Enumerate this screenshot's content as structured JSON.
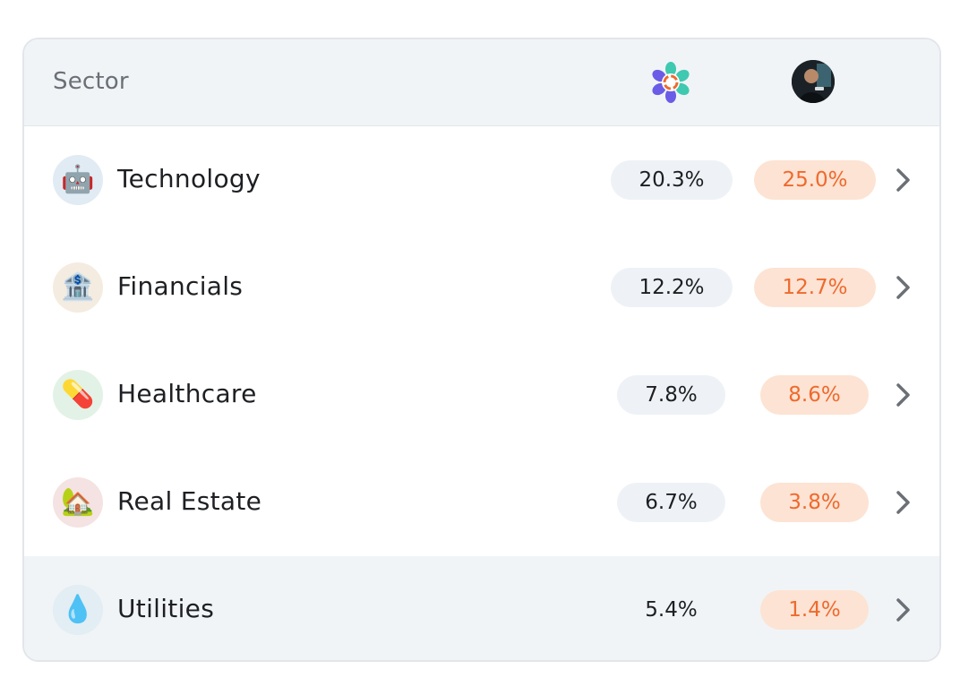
{
  "header": {
    "sector_label": "Sector",
    "column_a_icon": "flower-logo-icon",
    "column_b_icon": "person-avatar-icon"
  },
  "colors": {
    "pill_a_bg": "#eef2f6",
    "pill_b_bg": "#fde3d3",
    "pill_b_text": "#ee6a2e",
    "header_bg": "#f0f4f7"
  },
  "rows": [
    {
      "name": "Technology",
      "emoji": "🤖",
      "icon_name": "robot-icon",
      "value_a": "20.3%",
      "value_b": "25.0%"
    },
    {
      "name": "Financials",
      "emoji": "🏦",
      "icon_name": "bank-icon",
      "value_a": "12.2%",
      "value_b": "12.7%"
    },
    {
      "name": "Healthcare",
      "emoji": "💊",
      "icon_name": "pill-icon",
      "value_a": "7.8%",
      "value_b": "8.6%"
    },
    {
      "name": "Real Estate",
      "emoji": "🏡",
      "icon_name": "house-icon",
      "value_a": "6.7%",
      "value_b": "3.8%"
    },
    {
      "name": "Utilities",
      "emoji": "💧",
      "icon_name": "droplet-icon",
      "value_a": "5.4%",
      "value_b": "1.4%"
    }
  ]
}
